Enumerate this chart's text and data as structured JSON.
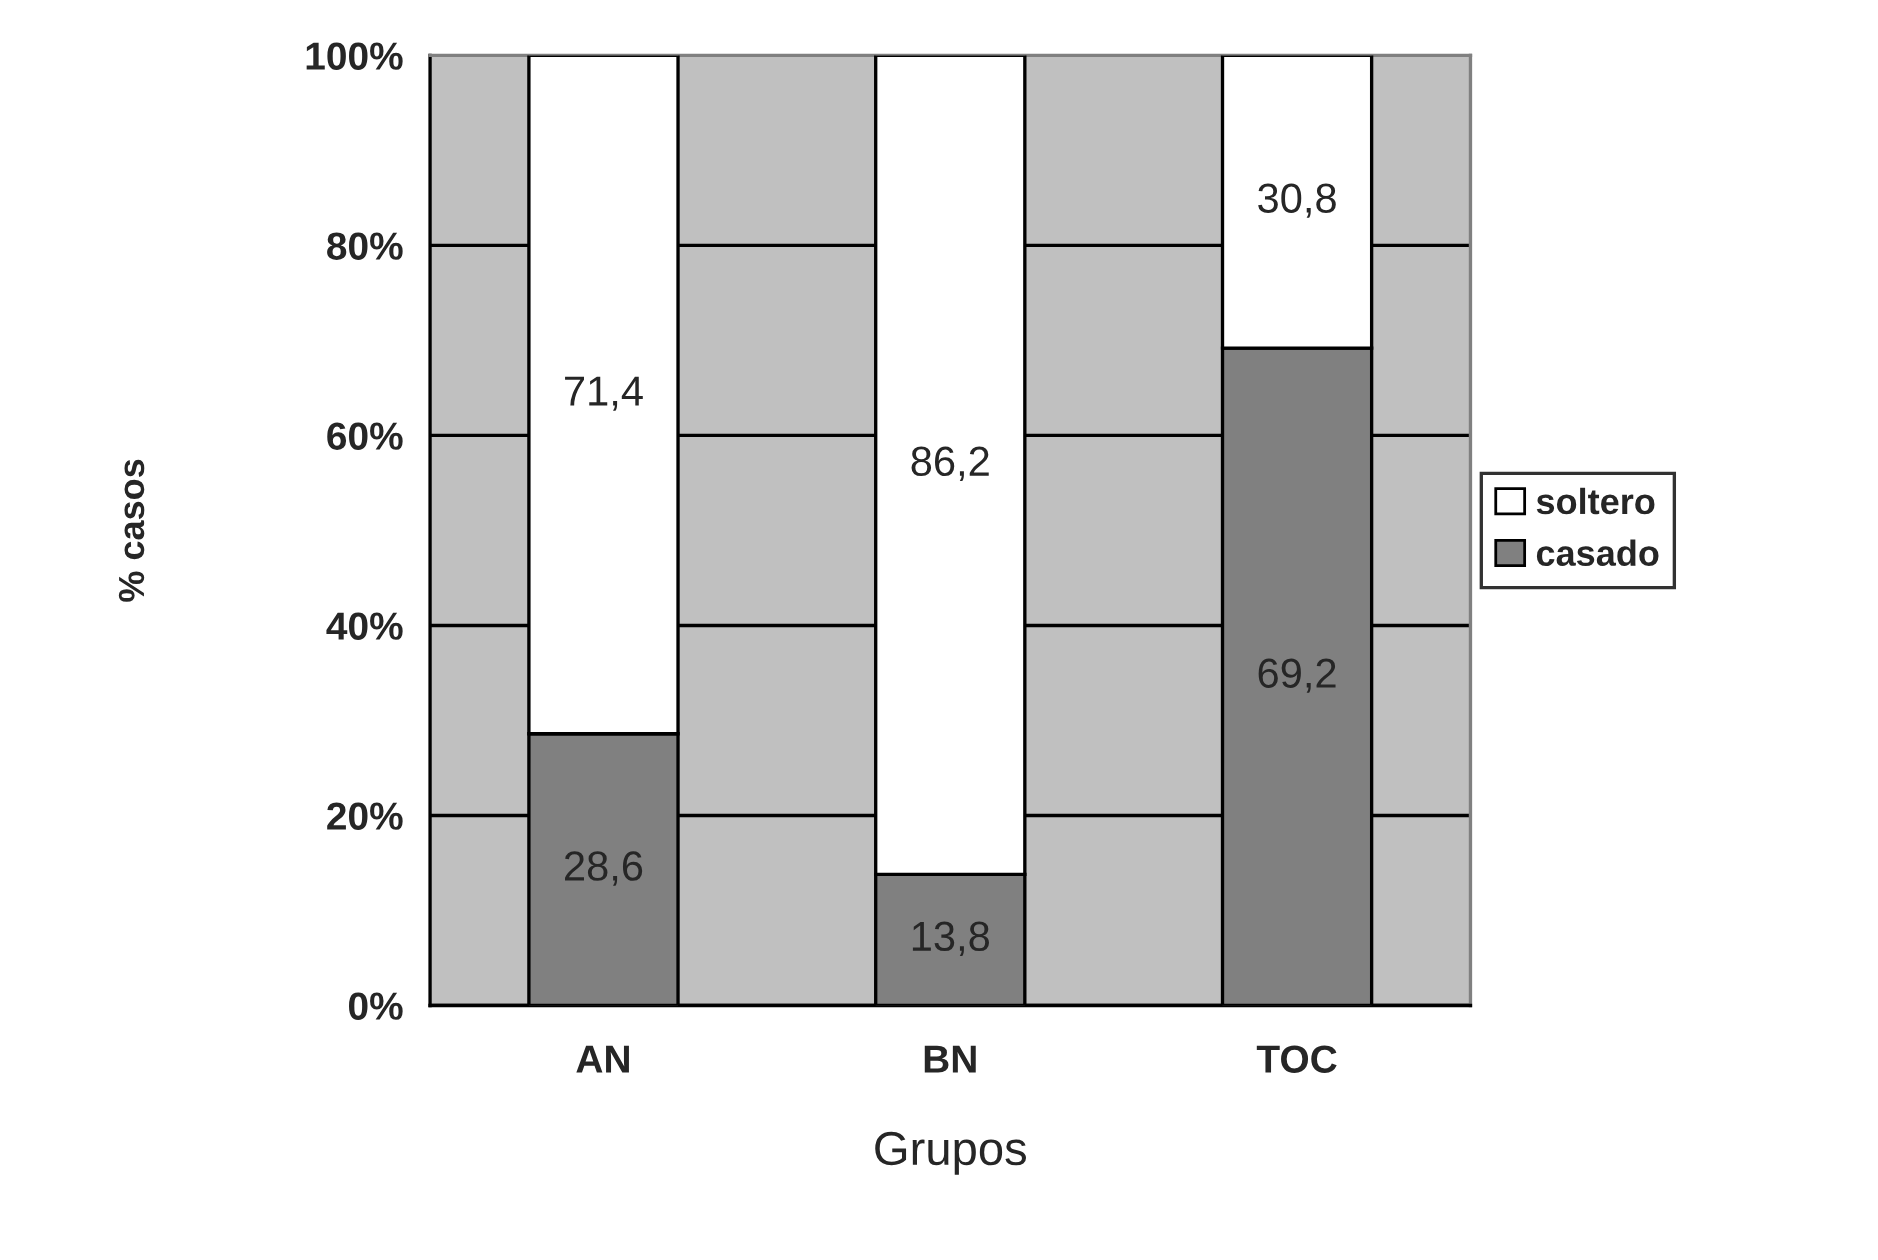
{
  "chart_data": {
    "type": "bar",
    "stacked": true,
    "xlabel": "Grupos",
    "ylabel": "% casos",
    "categories": [
      "AN",
      "BN",
      "TOC"
    ],
    "series": [
      {
        "name": "casado",
        "color": "#808080",
        "values": [
          28.6,
          13.8,
          69.2
        ],
        "value_labels": [
          "28,6",
          "13,8",
          "69,2"
        ]
      },
      {
        "name": "soltero",
        "color": "#ffffff",
        "values": [
          71.4,
          86.2,
          30.8
        ],
        "value_labels": [
          "71,4",
          "86,2",
          "30,8"
        ]
      }
    ],
    "ylim": [
      0,
      100
    ],
    "yticks": [
      {
        "value": 0,
        "label": "0%"
      },
      {
        "value": 20,
        "label": "20%"
      },
      {
        "value": 40,
        "label": "40%"
      },
      {
        "value": 60,
        "label": "60%"
      },
      {
        "value": 80,
        "label": "80%"
      },
      {
        "value": 100,
        "label": "100%"
      }
    ],
    "grid": "y",
    "legend": "right"
  }
}
